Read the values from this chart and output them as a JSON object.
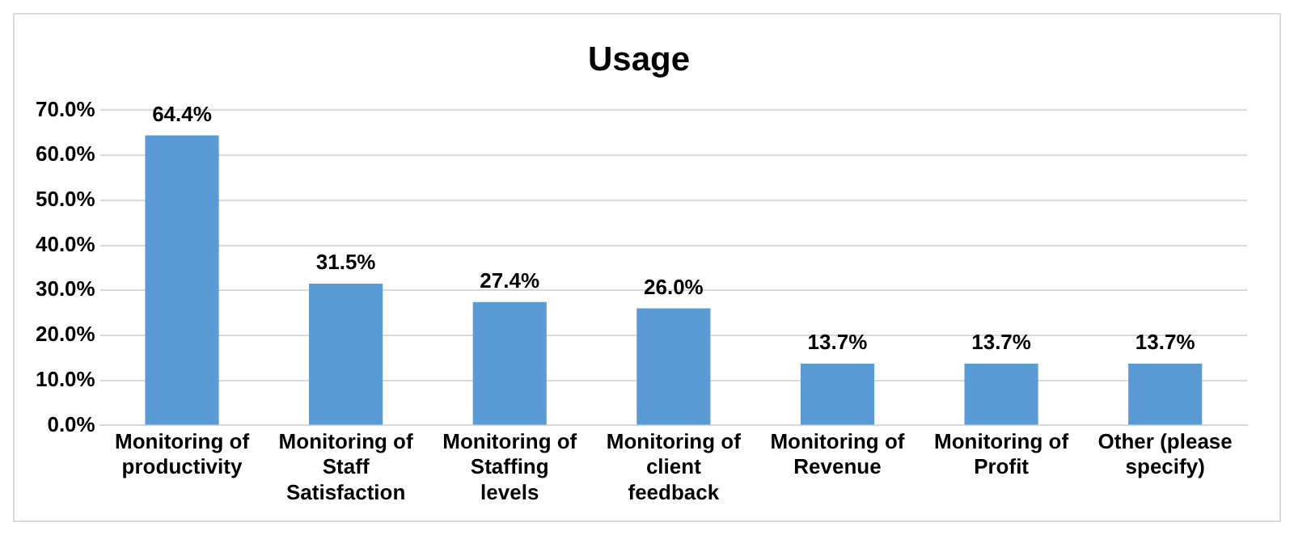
{
  "chart_data": {
    "type": "bar",
    "title": "Usage",
    "categories": [
      "Monitoring of productivity",
      "Monitoring of Staff Satisfaction",
      "Monitoring of Staffing levels",
      "Monitoring of client feedback",
      "Monitoring of Revenue",
      "Monitoring of Profit",
      "Other (please specify)"
    ],
    "values": [
      64.4,
      31.5,
      27.4,
      26.0,
      13.7,
      13.7,
      13.7
    ],
    "value_labels": [
      "64.4%",
      "31.5%",
      "27.4%",
      "26.0%",
      "13.7%",
      "13.7%",
      "13.7%"
    ],
    "color": "#5b9bd5",
    "ylim": [
      0,
      70
    ],
    "yticks": [
      {
        "value": 0,
        "label": "0.0%"
      },
      {
        "value": 10,
        "label": "10.0%"
      },
      {
        "value": 20,
        "label": "20.0%"
      },
      {
        "value": 30,
        "label": "30.0%"
      },
      {
        "value": 40,
        "label": "40.0%"
      },
      {
        "value": 50,
        "label": "50.0%"
      },
      {
        "value": 60,
        "label": "60.0%"
      },
      {
        "value": 70,
        "label": "70.0%"
      }
    ],
    "grid": "y",
    "legend": false
  }
}
